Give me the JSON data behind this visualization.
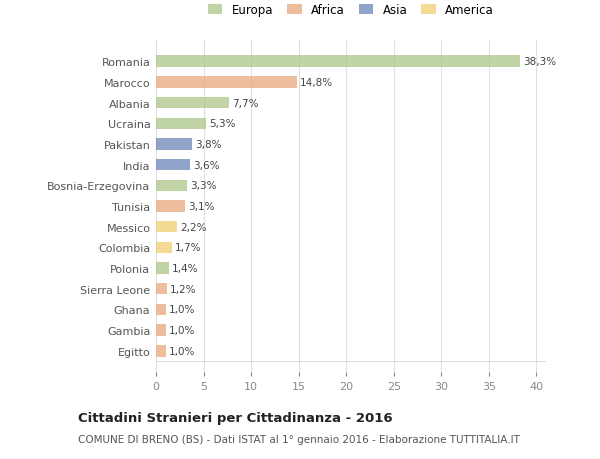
{
  "categories": [
    "Romania",
    "Marocco",
    "Albania",
    "Ucraina",
    "Pakistan",
    "India",
    "Bosnia-Erzegovina",
    "Tunisia",
    "Messico",
    "Colombia",
    "Polonia",
    "Sierra Leone",
    "Ghana",
    "Gambia",
    "Egitto"
  ],
  "values": [
    38.3,
    14.8,
    7.7,
    5.3,
    3.8,
    3.6,
    3.3,
    3.1,
    2.2,
    1.7,
    1.4,
    1.2,
    1.0,
    1.0,
    1.0
  ],
  "labels": [
    "38,3%",
    "14,8%",
    "7,7%",
    "5,3%",
    "3,8%",
    "3,6%",
    "3,3%",
    "3,1%",
    "2,2%",
    "1,7%",
    "1,4%",
    "1,2%",
    "1,0%",
    "1,0%",
    "1,0%"
  ],
  "colors": [
    "#adc688",
    "#e8a97e",
    "#adc688",
    "#adc688",
    "#6b84b8",
    "#6b84b8",
    "#adc688",
    "#e8a97e",
    "#f0d070",
    "#f0d070",
    "#adc688",
    "#e8a97e",
    "#e8a97e",
    "#e8a97e",
    "#e8a97e"
  ],
  "legend_labels": [
    "Europa",
    "Africa",
    "Asia",
    "America"
  ],
  "legend_colors": [
    "#adc688",
    "#e8a97e",
    "#6b84b8",
    "#f0d070"
  ],
  "xlim": [
    0,
    41
  ],
  "xticks": [
    0,
    5,
    10,
    15,
    20,
    25,
    30,
    35,
    40
  ],
  "title": "Cittadini Stranieri per Cittadinanza - 2016",
  "subtitle": "COMUNE DI BRENO (BS) - Dati ISTAT al 1° gennaio 2016 - Elaborazione TUTTITALIA.IT",
  "bg_color": "#ffffff",
  "plot_bg_color": "#ffffff",
  "bar_alpha": 0.75,
  "figsize": [
    6.0,
    4.6
  ],
  "dpi": 100
}
